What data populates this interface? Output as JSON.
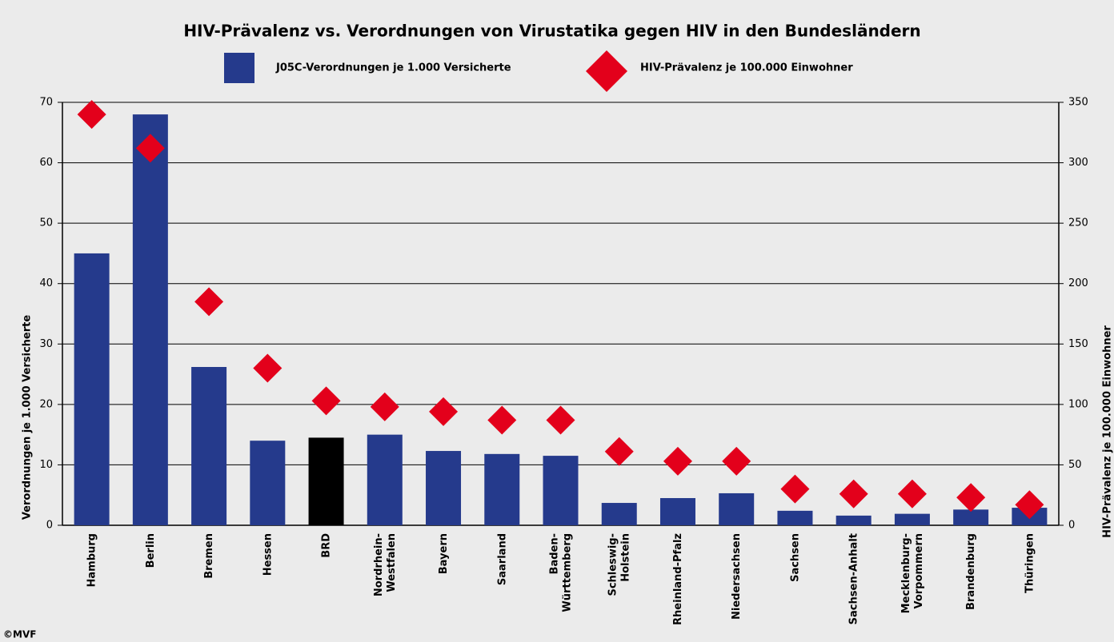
{
  "chart_data": {
    "type": "bar_diamond",
    "title": "HIV-Prävalenz vs. Verordnungen von Virustatika gegen HIV in den Bundesländern",
    "categories": [
      "Hamburg",
      "Berlin",
      "Bremen",
      "Hessen",
      "BRD",
      "Nordrhein-\nWestfalen",
      "Bayern",
      "Saarland",
      "Baden-\nWürttemberg",
      "Schleswig-\nHolstein",
      "Rheinland-Pfalz",
      "Niedersachsen",
      "Sachsen",
      "Sachsen-Anhalt",
      "Mecklenburg-\nVorpommern",
      "Brandenburg",
      "Thüringen"
    ],
    "series": [
      {
        "name": "J05C-Verordnungen je 1.000 Versicherte",
        "color": "#253a8c",
        "colors": [
          "#253a8c",
          "#253a8c",
          "#253a8c",
          "#253a8c",
          "#000000",
          "#253a8c",
          "#253a8c",
          "#253a8c",
          "#253a8c",
          "#253a8c",
          "#253a8c",
          "#253a8c",
          "#253a8c",
          "#253a8c",
          "#253a8c",
          "#253a8c",
          "#253a8c"
        ],
        "values": [
          45,
          68,
          26.2,
          14,
          14.5,
          15,
          12.3,
          11.8,
          11.5,
          3.7,
          4.5,
          5.3,
          2.4,
          1.6,
          1.9,
          2.6,
          2.9
        ]
      },
      {
        "name": "HIV-Prävalenz je 100.000 Einwohner",
        "color": "#e3001b",
        "axis": "y2",
        "values": [
          340,
          312,
          185,
          130,
          103,
          98,
          94,
          87,
          87,
          61,
          53,
          53,
          30,
          26,
          26,
          23,
          17
        ]
      }
    ],
    "ylabel": "Verordnungen je 1.000 Versicherte",
    "y2label": "HIV-Prävalenz je 100.000 Einwohner",
    "ylim": [
      0,
      70
    ],
    "yticks": [
      0,
      10,
      20,
      30,
      40,
      50,
      60,
      70
    ],
    "y2lim": [
      0,
      350
    ],
    "y2ticks": [
      0,
      50,
      100,
      150,
      200,
      250,
      300,
      350
    ],
    "grid": true,
    "source": "©MVF"
  }
}
